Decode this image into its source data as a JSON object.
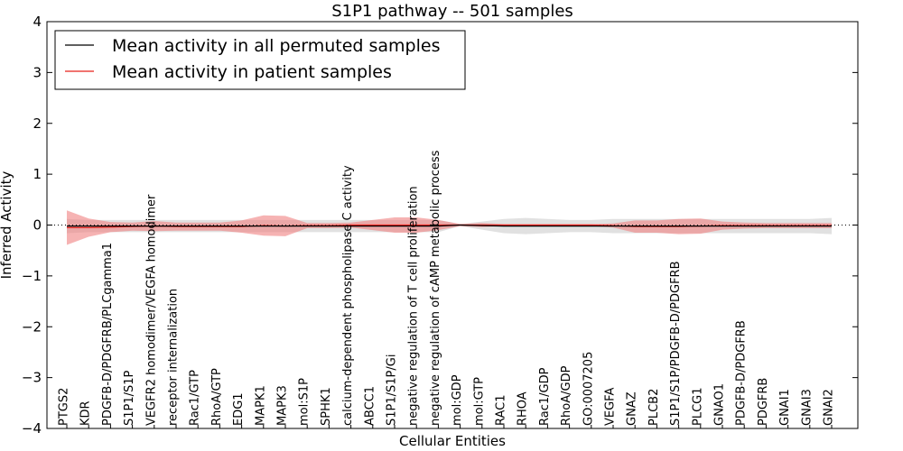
{
  "chart_data": {
    "type": "line",
    "title": "S1P1 pathway -- 501 samples",
    "xlabel": "Cellular Entities",
    "ylabel": "Inferred Activity",
    "ylim": [
      -4,
      4
    ],
    "yticks": [
      -4,
      -3,
      -2,
      -1,
      0,
      1,
      2,
      3,
      4
    ],
    "ytick_labels": [
      "−4",
      "−3",
      "−2",
      "−1",
      "0",
      "1",
      "2",
      "3",
      "4"
    ],
    "legend_position": "top-left",
    "categories": [
      "PTGS2",
      "KDR",
      "PDGFB-D/PDGFRB/PLCgamma1",
      "S1P1/S1P",
      "VEGFR2 homodimer/VEGFA homodimer",
      "receptor internalization",
      "Rac1/GTP",
      "RhoA/GTP",
      "EDG1",
      "MAPK1",
      "MAPK3",
      "mol:S1P",
      "SPHK1",
      "calcium-dependent phospholipase C activity",
      "ABCC1",
      "S1P1/S1P/Gi",
      "negative regulation of T cell proliferation",
      "negative regulation of cAMP metabolic process",
      "mol:GDP",
      "mol:GTP",
      "RAC1",
      "RHOA",
      "Rac1/GDP",
      "RhoA/GDP",
      "GO:0007205",
      "VEGFA",
      "GNAZ",
      "PLCB2",
      "S1P1/S1P/PDGFB-D/PDGFRB",
      "PLCG1",
      "GNAO1",
      "PDGFB-D/PDGFRB",
      "PDGFRB",
      "GNAI1",
      "GNAI3",
      "GNAI2"
    ],
    "series": [
      {
        "name": "Mean activity in all permuted samples",
        "color": "#000000",
        "band_color": "#c8c8c8",
        "values": [
          -0.02,
          -0.02,
          -0.02,
          -0.02,
          -0.02,
          -0.02,
          -0.02,
          -0.02,
          -0.02,
          -0.02,
          -0.02,
          -0.02,
          -0.02,
          -0.02,
          -0.02,
          -0.02,
          -0.02,
          -0.02,
          0.0,
          -0.01,
          -0.02,
          -0.02,
          -0.02,
          -0.02,
          -0.02,
          -0.02,
          -0.02,
          -0.02,
          -0.02,
          -0.02,
          -0.02,
          -0.02,
          -0.02,
          -0.02,
          -0.02,
          -0.02
        ],
        "band": [
          0.14,
          0.12,
          0.12,
          0.12,
          0.12,
          0.12,
          0.12,
          0.12,
          0.12,
          0.12,
          0.12,
          0.12,
          0.12,
          0.12,
          0.12,
          0.12,
          0.12,
          0.12,
          0.02,
          0.08,
          0.14,
          0.16,
          0.14,
          0.12,
          0.12,
          0.14,
          0.14,
          0.14,
          0.14,
          0.14,
          0.14,
          0.14,
          0.14,
          0.14,
          0.14,
          0.16
        ]
      },
      {
        "name": "Mean activity in patient samples",
        "color": "#e8201a",
        "band_color": "#f08080",
        "values": [
          -0.05,
          -0.05,
          -0.04,
          -0.03,
          -0.02,
          -0.03,
          -0.03,
          -0.03,
          -0.03,
          -0.01,
          -0.02,
          -0.01,
          -0.01,
          0.0,
          0.0,
          0.0,
          0.0,
          0.0,
          0.0,
          0.0,
          0.0,
          0.0,
          0.0,
          0.0,
          0.0,
          -0.01,
          -0.03,
          -0.03,
          -0.03,
          -0.02,
          -0.01,
          -0.01,
          -0.01,
          -0.01,
          -0.01,
          -0.01
        ],
        "band": [
          0.34,
          0.18,
          0.1,
          0.08,
          0.1,
          0.08,
          0.08,
          0.08,
          0.12,
          0.2,
          0.2,
          0.05,
          0.05,
          0.05,
          0.1,
          0.15,
          0.15,
          0.1,
          0.02,
          0.04,
          0.02,
          0.02,
          0.02,
          0.02,
          0.02,
          0.04,
          0.12,
          0.12,
          0.15,
          0.15,
          0.08,
          0.06,
          0.05,
          0.05,
          0.05,
          0.05
        ]
      }
    ],
    "reference_line": {
      "y": 0,
      "style": "dotted"
    }
  }
}
